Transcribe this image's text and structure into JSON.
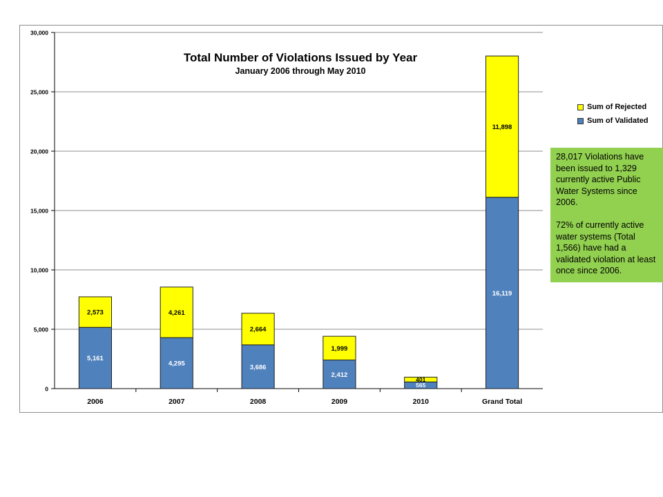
{
  "colors": {
    "validated": "#4f81bd",
    "rejected": "#ffff00",
    "note_bg": "#92d050",
    "grid": "#8c8c8c"
  },
  "chart_data": {
    "type": "bar",
    "stacked": true,
    "title": "Total Number of Violations Issued by Year",
    "subtitle": "January 2006 through May 2010",
    "categories": [
      "2006",
      "2007",
      "2008",
      "2009",
      "2010",
      "Grand Total"
    ],
    "series": [
      {
        "name": "Sum of Validated",
        "values": [
          5161,
          4295,
          3686,
          2412,
          565,
          16119
        ],
        "labels": [
          "5,161",
          "4,295",
          "3,686",
          "2,412",
          "565",
          "16,119"
        ]
      },
      {
        "name": "Sum of Rejected",
        "values": [
          2573,
          4261,
          2664,
          1999,
          401,
          11898
        ],
        "labels": [
          "2,573",
          "4,261",
          "2,664",
          "1,999",
          "401",
          "11,898"
        ]
      }
    ],
    "ylim": [
      0,
      30000
    ],
    "yticks": [
      0,
      5000,
      10000,
      15000,
      20000,
      25000,
      30000
    ],
    "ytick_labels": [
      "0",
      "5,000",
      "10,000",
      "15,000",
      "20,000",
      "25,000",
      "30,000"
    ],
    "grid": true,
    "legend_position": "right",
    "xlabel": "",
    "ylabel": ""
  },
  "legend": {
    "rejected_label": "Sum of Rejected",
    "validated_label": "Sum of Validated"
  },
  "note": {
    "paragraph1": "28,017 Violations have been issued to 1,329 currently active Public Water Systems since 2006.",
    "paragraph2": "72% of currently active water systems (Total 1,566) have had a validated violation at least once since 2006."
  }
}
